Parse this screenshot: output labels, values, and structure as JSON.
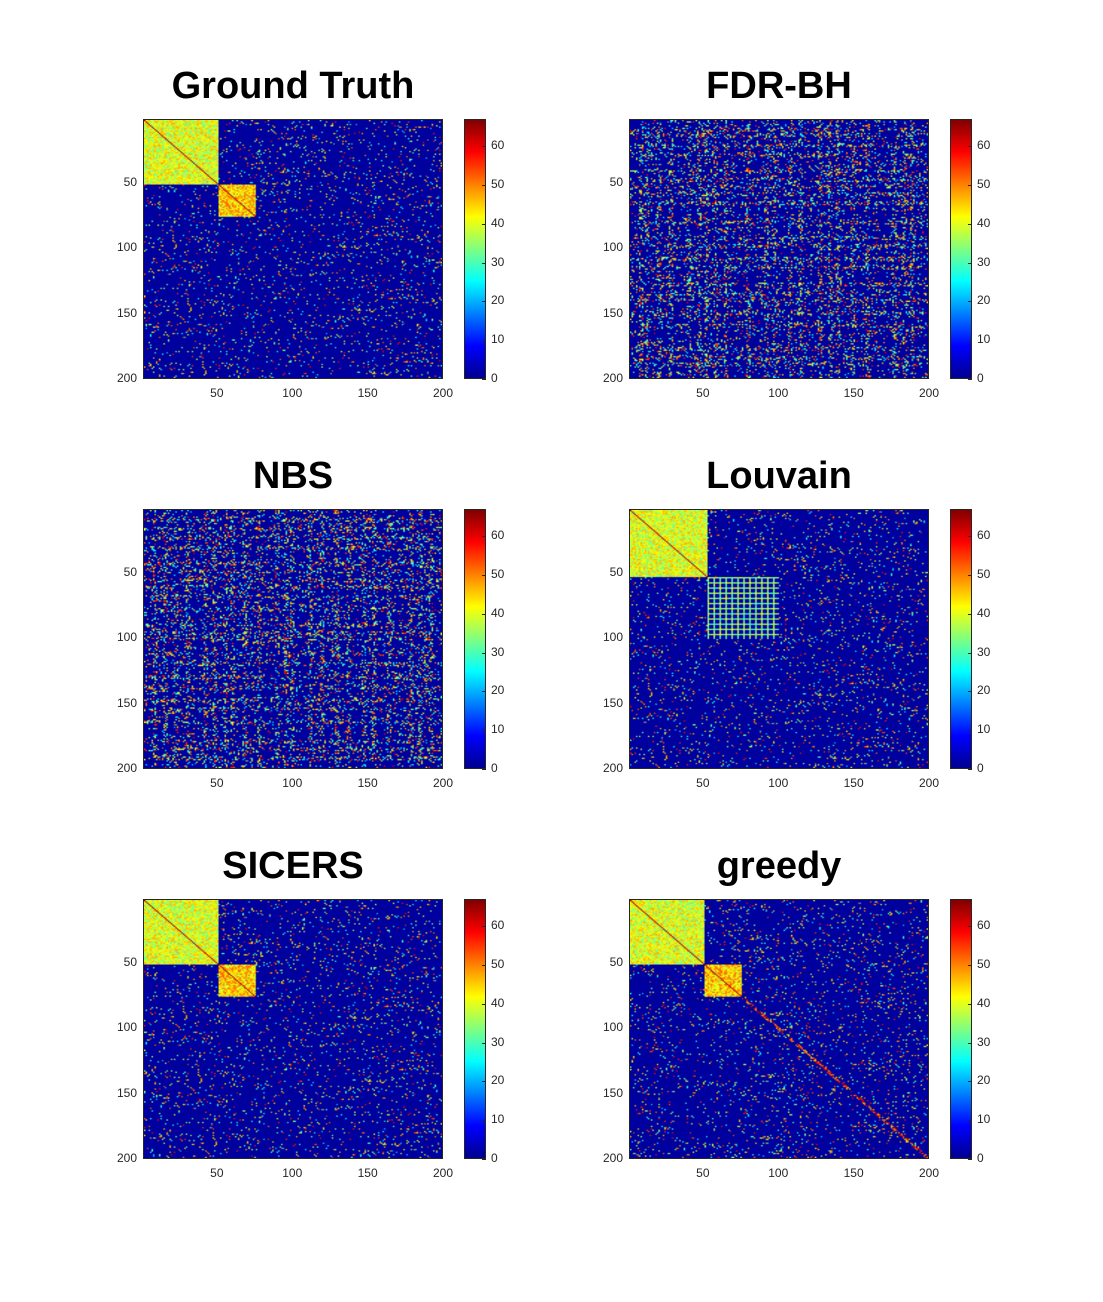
{
  "colormap": "jet",
  "colors": {
    "background_low": "#00008f",
    "accent_high": "#800000"
  },
  "chart_data": [
    {
      "type": "heatmap",
      "title": "Ground Truth",
      "xlim": [
        1,
        200
      ],
      "ylim": [
        1,
        200
      ],
      "x_ticks": [
        "50",
        "100",
        "150",
        "200"
      ],
      "y_ticks": [
        "50",
        "100",
        "150",
        "200"
      ],
      "colorbar": {
        "range": [
          0,
          67
        ],
        "ticks": [
          "0",
          "10",
          "20",
          "30",
          "40",
          "50",
          "60"
        ]
      },
      "blocks": [
        {
          "rows": [
            1,
            50
          ],
          "cols": [
            1,
            50
          ],
          "value": 40,
          "diagonal": "dark-red"
        },
        {
          "rows": [
            51,
            75
          ],
          "cols": [
            51,
            75
          ],
          "value": 45,
          "diagonal": "dark-red"
        }
      ],
      "background_density": 0.06,
      "band_rows": [],
      "diagonal_band": false
    },
    {
      "type": "heatmap",
      "title": "FDR-BH",
      "xlim": [
        1,
        200
      ],
      "ylim": [
        1,
        200
      ],
      "x_ticks": [
        "50",
        "100",
        "150",
        "200"
      ],
      "y_ticks": [
        "50",
        "100",
        "150",
        "200"
      ],
      "colorbar": {
        "range": [
          0,
          67
        ],
        "ticks": [
          "0",
          "10",
          "20",
          "30",
          "40",
          "50",
          "60"
        ]
      },
      "blocks": [],
      "background_density": 0.08,
      "band_rows": [
        8,
        12,
        20,
        28,
        40,
        47,
        52,
        58,
        65,
        80,
        92,
        98,
        108,
        115,
        128,
        135,
        140,
        150,
        160,
        178,
        185,
        190
      ],
      "diagonal_band": false
    },
    {
      "type": "heatmap",
      "title": "NBS",
      "xlim": [
        1,
        200
      ],
      "ylim": [
        1,
        200
      ],
      "x_ticks": [
        "50",
        "100",
        "150",
        "200"
      ],
      "y_ticks": [
        "50",
        "100",
        "150",
        "200"
      ],
      "colorbar": {
        "range": [
          0,
          67
        ],
        "ticks": [
          "0",
          "10",
          "20",
          "30",
          "40",
          "50",
          "60"
        ]
      },
      "blocks": [],
      "background_density": 0.08,
      "band_rows": [
        8,
        15,
        22,
        30,
        42,
        48,
        55,
        60,
        68,
        78,
        90,
        96,
        100,
        112,
        120,
        130,
        138,
        148,
        155,
        165,
        180,
        186,
        193
      ],
      "diagonal_band": false
    },
    {
      "type": "heatmap",
      "title": "Louvain",
      "xlim": [
        1,
        200
      ],
      "ylim": [
        1,
        200
      ],
      "x_ticks": [
        "50",
        "100",
        "150",
        "200"
      ],
      "y_ticks": [
        "50",
        "100",
        "150",
        "200"
      ],
      "colorbar": {
        "range": [
          0,
          67
        ],
        "ticks": [
          "0",
          "10",
          "20",
          "30",
          "40",
          "50",
          "60"
        ]
      },
      "blocks": [
        {
          "rows": [
            1,
            52
          ],
          "cols": [
            1,
            52
          ],
          "value": 40,
          "diagonal": "dark-red"
        },
        {
          "rows": [
            53,
            100
          ],
          "cols": [
            53,
            100
          ],
          "value": 35,
          "diagonal": "none",
          "striped": true
        }
      ],
      "background_density": 0.06,
      "band_rows": [],
      "diagonal_band": false
    },
    {
      "type": "heatmap",
      "title": "SICERS",
      "xlim": [
        1,
        200
      ],
      "ylim": [
        1,
        200
      ],
      "x_ticks": [
        "50",
        "100",
        "150",
        "200"
      ],
      "y_ticks": [
        "50",
        "100",
        "150",
        "200"
      ],
      "colorbar": {
        "range": [
          0,
          67
        ],
        "ticks": [
          "0",
          "10",
          "20",
          "30",
          "40",
          "50",
          "60"
        ]
      },
      "blocks": [
        {
          "rows": [
            1,
            50
          ],
          "cols": [
            1,
            50
          ],
          "value": 40,
          "diagonal": "dark-red"
        },
        {
          "rows": [
            51,
            75
          ],
          "cols": [
            51,
            75
          ],
          "value": 45,
          "diagonal": "dark-red"
        }
      ],
      "background_density": 0.06,
      "band_rows": [],
      "diagonal_band": false
    },
    {
      "type": "heatmap",
      "title": "greedy",
      "xlim": [
        1,
        200
      ],
      "ylim": [
        1,
        200
      ],
      "x_ticks": [
        "50",
        "100",
        "150",
        "200"
      ],
      "y_ticks": [
        "50",
        "100",
        "150",
        "200"
      ],
      "colorbar": {
        "range": [
          0,
          67
        ],
        "ticks": [
          "0",
          "10",
          "20",
          "30",
          "40",
          "50",
          "60"
        ]
      },
      "blocks": [
        {
          "rows": [
            1,
            50
          ],
          "cols": [
            1,
            50
          ],
          "value": 40,
          "diagonal": "dark-red"
        },
        {
          "rows": [
            51,
            75
          ],
          "cols": [
            51,
            75
          ],
          "value": 45,
          "diagonal": "dark-red"
        }
      ],
      "background_density": 0.06,
      "band_rows": [],
      "diagonal_band": true
    }
  ]
}
